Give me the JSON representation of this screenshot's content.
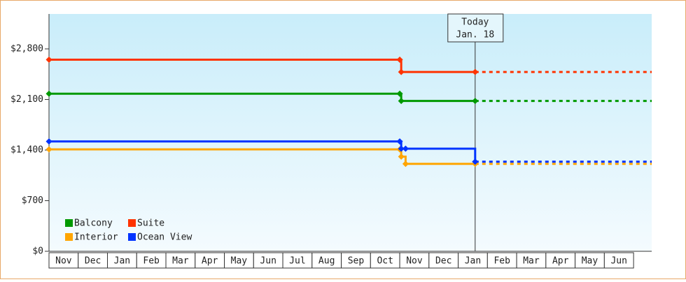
{
  "chart_data": {
    "type": "line",
    "step": true,
    "categories": [
      "Nov",
      "Dec",
      "Jan",
      "Feb",
      "Mar",
      "Apr",
      "May",
      "Jun",
      "Jul",
      "Aug",
      "Sep",
      "Oct",
      "Nov",
      "Dec",
      "Jan",
      "Feb",
      "Mar",
      "Apr",
      "May",
      "Jun"
    ],
    "xlim": [
      0,
      20.62
    ],
    "ylim": [
      0,
      3283
    ],
    "yticks": [
      {
        "value": 0,
        "label": "$0"
      },
      {
        "value": 700,
        "label": "$700"
      },
      {
        "value": 1400,
        "label": "$1,400"
      },
      {
        "value": 2100,
        "label": "$2,100"
      },
      {
        "value": 2800,
        "label": "$2,800"
      }
    ],
    "series": [
      {
        "name": "Balcony",
        "color": "#009900",
        "x": [
          0,
          12,
          12.05,
          14.58
        ],
        "values": [
          2180,
          2180,
          2080,
          2080
        ]
      },
      {
        "name": "Suite",
        "color": "#ff3300",
        "x": [
          0,
          12,
          12.05,
          14.58
        ],
        "values": [
          2650,
          2650,
          2480,
          2480
        ]
      },
      {
        "name": "Interior",
        "color": "#ffa500",
        "x": [
          0,
          12,
          12.05,
          12.2,
          14.58
        ],
        "values": [
          1410,
          1410,
          1310,
          1210,
          1210
        ]
      },
      {
        "name": "Ocean View",
        "color": "#0033ff",
        "x": [
          0,
          12,
          12.05,
          12.2,
          14.58
        ],
        "values": [
          1520,
          1520,
          1420,
          1420,
          1240
        ]
      }
    ],
    "annotation": {
      "lines": [
        "Today",
        "Jan. 18"
      ],
      "x": 14.58
    },
    "legend": "lower left"
  }
}
